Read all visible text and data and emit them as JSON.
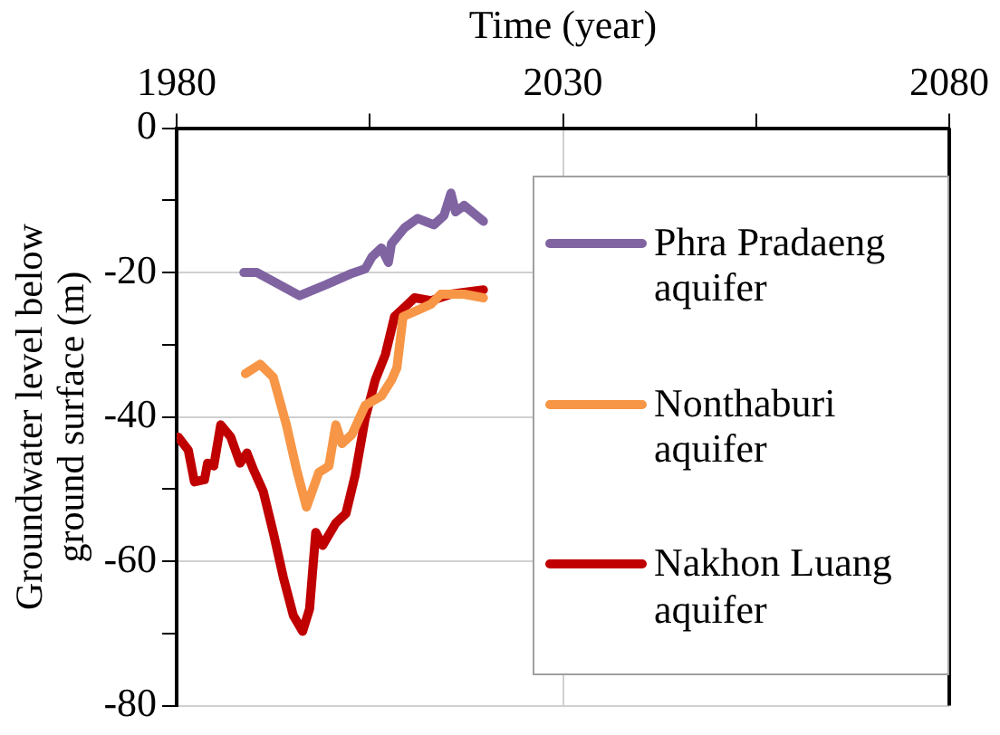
{
  "chart_data": {
    "type": "line",
    "xlabel": "Time (year)",
    "ylabel": "Groundwater level below ground surface (m)",
    "xlim": [
      1980,
      2080
    ],
    "xticks": [
      1980,
      {
        "value": 2005,
        "label": null
      },
      2030,
      {
        "value": 2055,
        "label": null
      },
      2080
    ],
    "ylim": [
      -80,
      0
    ],
    "yticks": [
      -80,
      {
        "value": -70,
        "label": null
      },
      -60,
      {
        "value": -50,
        "label": null
      },
      -40,
      {
        "value": -30,
        "label": null
      },
      -20,
      {
        "value": -10,
        "label": null
      },
      0
    ],
    "grid": true,
    "legend": "right",
    "marker": "none",
    "line_style": "solid",
    "series": [
      {
        "name": "Phra Pradaeng aquifer",
        "color": "#8064a2",
        "x": [
          1988.7,
          1990.4,
          1995.9,
          1999.3,
          2002.7,
          2004.4,
          2005.3,
          2006.5,
          2007.4,
          2007.8,
          2009.5,
          2011.2,
          2013.3,
          2014.6,
          2015.5,
          2016.1,
          2017.2,
          2019.7
        ],
        "values": [
          -20,
          -20,
          -23.2,
          -21.7,
          -20.1,
          -19.5,
          -17.8,
          -16.6,
          -18.6,
          -16,
          -13.8,
          -12.5,
          -13.4,
          -12.1,
          -9,
          -11.6,
          -10.7,
          -12.9
        ]
      },
      {
        "name": "Nonthaburi aquifer",
        "color": "#f79646",
        "x": [
          1988.9,
          1990.8,
          1992.5,
          1994.2,
          1995.5,
          1996.8,
          1998.4,
          1999.7,
          2000.6,
          2001.4,
          2002.7,
          2004.4,
          2006.5,
          2007.8,
          2008.5,
          2009.3,
          2011.2,
          2012.9,
          2014.2,
          2017.2,
          2019.7
        ],
        "values": [
          -34,
          -32.7,
          -34.5,
          -41.1,
          -47.2,
          -52.5,
          -47.7,
          -46.8,
          -41.1,
          -43.7,
          -42.4,
          -38.4,
          -37.1,
          -34.9,
          -33.2,
          -26.1,
          -25.2,
          -24.4,
          -23,
          -23,
          -23.5
        ]
      },
      {
        "name": "Nakhon Luang aquifer",
        "color": "#c00000",
        "x": [
          1980.2,
          1981.5,
          1982.3,
          1983.6,
          1984,
          1984.8,
          1985.7,
          1987,
          1988.2,
          1989.1,
          1989.9,
          1991.2,
          1992.5,
          1993.8,
          1995.1,
          1996.3,
          1997.2,
          1998,
          1998.9,
          2000.6,
          2001.9,
          2003.1,
          2004.4,
          2005.7,
          2007,
          2008.2,
          2009.1,
          2010.8,
          2012.9,
          2015.5,
          2019.7
        ],
        "values": [
          -42.8,
          -44.6,
          -49,
          -48.7,
          -46.4,
          -46.8,
          -41.1,
          -42.8,
          -46.4,
          -45,
          -47.2,
          -50.3,
          -56,
          -62.2,
          -67.5,
          -69.7,
          -66.6,
          -56,
          -57.8,
          -54.7,
          -53.4,
          -48.1,
          -40.2,
          -34.9,
          -31.4,
          -26.1,
          -25.2,
          -23.5,
          -23.9,
          -23,
          -22.4
        ]
      }
    ]
  }
}
